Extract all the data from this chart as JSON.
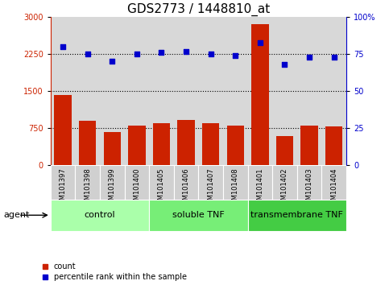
{
  "title": "GDS2773 / 1448810_at",
  "samples": [
    "GSM101397",
    "GSM101398",
    "GSM101399",
    "GSM101400",
    "GSM101405",
    "GSM101406",
    "GSM101407",
    "GSM101408",
    "GSM101401",
    "GSM101402",
    "GSM101403",
    "GSM101404"
  ],
  "counts": [
    1420,
    900,
    680,
    800,
    850,
    920,
    850,
    800,
    2850,
    600,
    800,
    780
  ],
  "percentiles": [
    80,
    75,
    70,
    75,
    76,
    77,
    75,
    74,
    83,
    68,
    73,
    73
  ],
  "groups": [
    {
      "label": "control",
      "start": 0,
      "end": 4,
      "color": "#aaffaa"
    },
    {
      "label": "soluble TNF",
      "start": 4,
      "end": 8,
      "color": "#77ee77"
    },
    {
      "label": "transmembrane TNF",
      "start": 8,
      "end": 12,
      "color": "#44cc44"
    }
  ],
  "bar_color": "#cc2200",
  "dot_color": "#0000cc",
  "left_ylim": [
    0,
    3000
  ],
  "right_ylim": [
    0,
    100
  ],
  "left_yticks": [
    0,
    750,
    1500,
    2250,
    3000
  ],
  "right_yticks": [
    0,
    25,
    50,
    75,
    100
  ],
  "right_yticklabels": [
    "0",
    "25",
    "50",
    "75",
    "100%"
  ],
  "hlines": [
    750,
    1500,
    2250
  ],
  "legend_count_label": "count",
  "legend_pct_label": "percentile rank within the sample",
  "agent_label": "agent",
  "background_color": "#ffffff",
  "plot_bg_color": "#d8d8d8",
  "title_fontsize": 11,
  "tick_fontsize": 7,
  "label_fontsize": 8,
  "group_fontsize": 8,
  "sample_fontsize": 6
}
